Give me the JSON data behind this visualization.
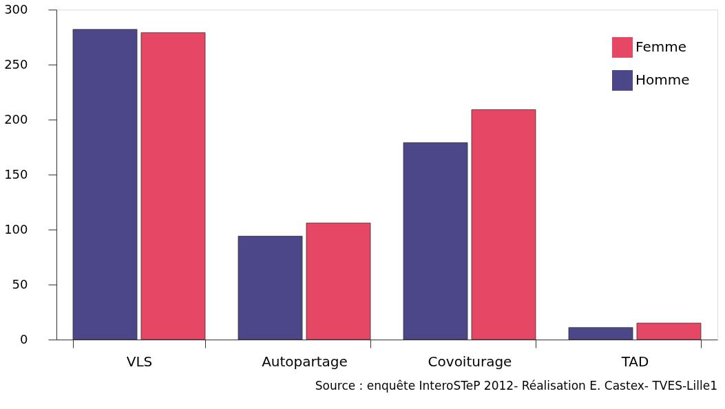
{
  "chart_data": {
    "type": "bar",
    "categories": [
      "VLS",
      "Autopartage",
      "Covoiturage",
      "TAD"
    ],
    "series": [
      {
        "name": "Homme",
        "color": "#4b4789",
        "values": [
          282,
          94,
          179,
          11
        ]
      },
      {
        "name": "Femme",
        "color": "#e64764",
        "values": [
          279,
          106,
          209,
          15
        ]
      }
    ],
    "ylim": [
      0,
      300
    ],
    "yticks": [
      0,
      50,
      100,
      150,
      200,
      250,
      300
    ],
    "grid": false,
    "legend": "top right",
    "annotations": [
      "Source : enquête InteroSTeP 2012- Réalisation E. Castex- TVES-Lille1"
    ]
  }
}
